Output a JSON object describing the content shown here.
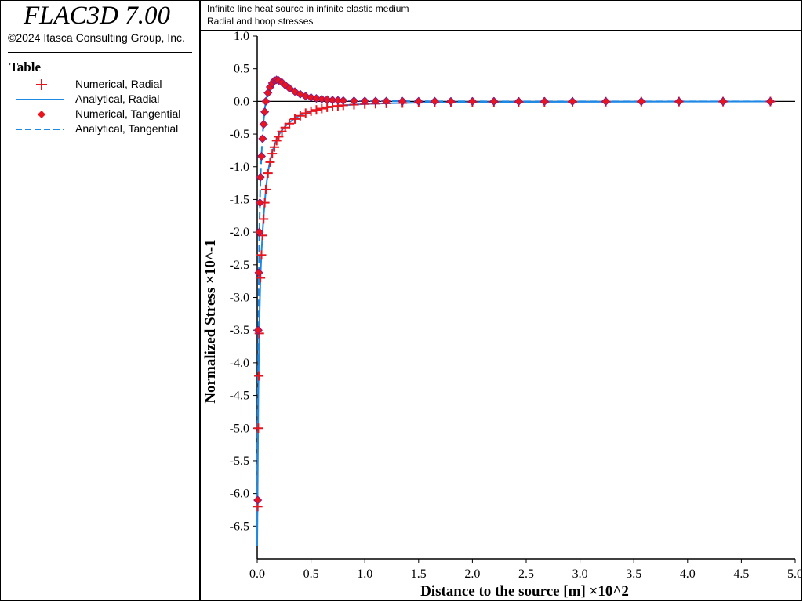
{
  "app": {
    "title": "FLAC3D 7.00",
    "copyright": "©2024 Itasca Consulting Group, Inc."
  },
  "legend": {
    "title": "Table",
    "items": [
      {
        "label": "Numerical, Radial",
        "symbol": "plus",
        "color": "#e8141e"
      },
      {
        "label": "Analytical, Radial",
        "symbol": "solid-line",
        "color": "#1e88e5"
      },
      {
        "label": "Numerical, Tangential",
        "symbol": "diamond",
        "color": "#e8141e"
      },
      {
        "label": "Analytical, Tangential",
        "symbol": "dashed-line",
        "color": "#1e88e5"
      }
    ]
  },
  "header": {
    "line1": "Infinite line heat source in infinite elastic medium",
    "line2": "Radial and hoop stresses"
  },
  "chart_data": {
    "type": "line",
    "title": "Infinite line heat source in infinite elastic medium",
    "subtitle": "Radial and hoop stresses",
    "xlabel": "Distance to the source [m] ×10^2",
    "ylabel": "Normalized Stress ×10^-1",
    "xlim": [
      0,
      5
    ],
    "ylim": [
      -7,
      1
    ],
    "x_ticks": [
      "0.0",
      "0.5",
      "1.0",
      "1.5",
      "2.0",
      "2.5",
      "3.0",
      "3.5",
      "4.0",
      "4.5",
      "5.0"
    ],
    "y_ticks": [
      "1.0",
      "0.5",
      "0.0",
      "-0.5",
      "-1.0",
      "-1.5",
      "-2.0",
      "-2.5",
      "-3.0",
      "-3.5",
      "-4.0",
      "-4.5",
      "-5.0",
      "-5.5",
      "-6.0",
      "-6.5"
    ],
    "grid": false,
    "legend_position": "left-panel",
    "colors": {
      "numerical": "#e8141e",
      "analytical": "#1e88e5",
      "marker_outline": "#7a1a8a"
    },
    "series": [
      {
        "name": "Numerical, Radial",
        "style": "plus",
        "x": [
          0.005,
          0.01,
          0.015,
          0.02,
          0.03,
          0.04,
          0.05,
          0.06,
          0.07,
          0.08,
          0.1,
          0.12,
          0.14,
          0.16,
          0.18,
          0.2,
          0.23,
          0.26,
          0.3,
          0.35,
          0.4,
          0.45,
          0.5,
          0.55,
          0.6,
          0.65,
          0.7,
          0.75,
          0.8,
          0.9,
          1.0,
          1.1,
          1.2,
          1.35,
          1.5,
          1.65,
          1.8,
          2.0,
          2.2,
          2.43,
          2.67,
          2.93,
          3.24,
          3.57,
          3.92,
          4.33,
          4.77
        ],
        "y": [
          -6.2,
          -5.0,
          -4.2,
          -3.55,
          -2.7,
          -2.35,
          -2.05,
          -1.8,
          -1.55,
          -1.35,
          -1.1,
          -0.93,
          -0.8,
          -0.7,
          -0.6,
          -0.54,
          -0.46,
          -0.4,
          -0.34,
          -0.27,
          -0.22,
          -0.18,
          -0.15,
          -0.13,
          -0.11,
          -0.09,
          -0.08,
          -0.07,
          -0.06,
          -0.05,
          -0.04,
          -0.035,
          -0.03,
          -0.025,
          -0.02,
          -0.017,
          -0.015,
          -0.012,
          -0.01,
          -0.008,
          -0.007,
          -0.006,
          -0.005,
          -0.004,
          -0.003,
          -0.003,
          -0.002
        ]
      },
      {
        "name": "Analytical, Radial",
        "style": "solid",
        "x": [
          0.0,
          0.01,
          0.02,
          0.03,
          0.04,
          0.05,
          0.06,
          0.08,
          0.1,
          0.12,
          0.15,
          0.18,
          0.22,
          0.26,
          0.3,
          0.35,
          0.4,
          0.5,
          0.6,
          0.7,
          0.8,
          1.0,
          1.2,
          1.5,
          2.0,
          2.5,
          3.0,
          4.0,
          4.8
        ],
        "y": [
          -6.8,
          -4.5,
          -3.4,
          -2.7,
          -2.3,
          -2.0,
          -1.75,
          -1.35,
          -1.08,
          -0.9,
          -0.72,
          -0.58,
          -0.46,
          -0.38,
          -0.32,
          -0.26,
          -0.21,
          -0.15,
          -0.11,
          -0.08,
          -0.06,
          -0.04,
          -0.03,
          -0.02,
          -0.012,
          -0.008,
          -0.006,
          -0.003,
          -0.002
        ]
      },
      {
        "name": "Numerical, Tangential",
        "style": "diamond",
        "x": [
          0.005,
          0.01,
          0.015,
          0.02,
          0.025,
          0.03,
          0.04,
          0.05,
          0.06,
          0.07,
          0.08,
          0.1,
          0.12,
          0.14,
          0.16,
          0.18,
          0.2,
          0.23,
          0.26,
          0.3,
          0.35,
          0.4,
          0.45,
          0.5,
          0.55,
          0.6,
          0.65,
          0.7,
          0.75,
          0.8,
          0.9,
          1.0,
          1.1,
          1.2,
          1.35,
          1.5,
          1.65,
          1.8,
          2.0,
          2.2,
          2.43,
          2.67,
          2.93,
          3.24,
          3.57,
          3.92,
          4.33,
          4.77
        ],
        "y": [
          -6.1,
          -3.5,
          -2.62,
          -2.0,
          -1.55,
          -1.16,
          -0.84,
          -0.57,
          -0.35,
          -0.16,
          0.0,
          0.13,
          0.22,
          0.28,
          0.32,
          0.33,
          0.32,
          0.29,
          0.25,
          0.2,
          0.15,
          0.11,
          0.08,
          0.06,
          0.045,
          0.035,
          0.027,
          0.02,
          0.016,
          0.013,
          0.009,
          0.007,
          0.005,
          0.004,
          0.003,
          0.002,
          0.002,
          0.001,
          0.001,
          0.001,
          0.0,
          0.0,
          0.0,
          0.0,
          0.0,
          0.0,
          0.0,
          0.0
        ]
      },
      {
        "name": "Analytical, Tangential",
        "style": "dashed",
        "x": [
          0.0,
          0.01,
          0.02,
          0.03,
          0.04,
          0.05,
          0.06,
          0.07,
          0.08,
          0.1,
          0.12,
          0.15,
          0.18,
          0.21,
          0.25,
          0.3,
          0.35,
          0.4,
          0.5,
          0.6,
          0.7,
          0.8,
          1.0,
          1.3,
          1.6,
          2.0,
          3.0,
          4.0,
          4.8
        ],
        "y": [
          -6.5,
          -3.5,
          -2.0,
          -1.2,
          -0.8,
          -0.52,
          -0.3,
          -0.12,
          0.0,
          0.14,
          0.23,
          0.31,
          0.33,
          0.31,
          0.27,
          0.2,
          0.15,
          0.11,
          0.06,
          0.035,
          0.022,
          0.015,
          0.008,
          0.004,
          0.002,
          0.001,
          0.0,
          0.0,
          0.0
        ]
      }
    ]
  }
}
